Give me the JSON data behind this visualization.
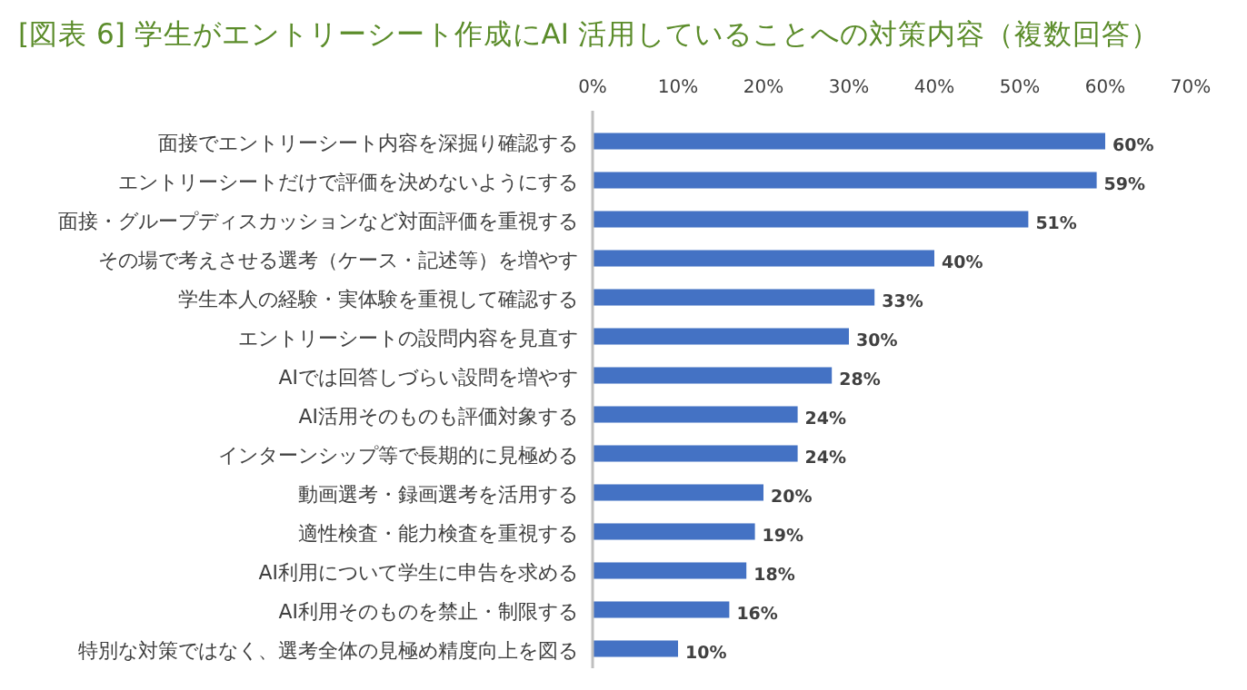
{
  "chart_data": {
    "type": "bar",
    "orientation": "horizontal",
    "title": "[図表 6] 学生がエントリーシート作成にAI 活用していることへの対策内容（複数回答）",
    "categories": [
      "面接でエントリーシート内容を深掘り確認する",
      "エントリーシートだけで評価を決めないようにする",
      "面接・グループディスカッションなど対面評価を重視する",
      "その場で考えさせる選考（ケース・記述等）を増やす",
      "学生本人の経験・実体験を重視して確認する",
      "エントリーシートの設問内容を見直す",
      "AIでは回答しづらい設問を増やす",
      "AI活用そのものも評価対象する",
      "インターンシップ等で長期的に見極める",
      "動画選考・録画選考を活用する",
      "適性検査・能力検査を重視する",
      "AI利用について学生に申告を求める",
      "AI利用そのものを禁止・制限する",
      "特別な対策ではなく、選考全体の見極め精度向上を図る"
    ],
    "values": [
      60,
      59,
      51,
      40,
      33,
      30,
      28,
      24,
      24,
      20,
      19,
      18,
      16,
      10
    ],
    "value_labels": [
      "60%",
      "59%",
      "51%",
      "40%",
      "33%",
      "30%",
      "28%",
      "24%",
      "24%",
      "20%",
      "19%",
      "18%",
      "16%",
      "10%"
    ],
    "color": "#4472c4",
    "xlim": [
      0,
      70
    ],
    "xticks": [
      {
        "value": 0,
        "label": "0%"
      },
      {
        "value": 10,
        "label": "10%"
      },
      {
        "value": 20,
        "label": "20%"
      },
      {
        "value": 30,
        "label": "30%"
      },
      {
        "value": 40,
        "label": "40%"
      },
      {
        "value": 50,
        "label": "50%"
      },
      {
        "value": 60,
        "label": "60%"
      },
      {
        "value": 70,
        "label": "70%"
      }
    ],
    "grid": false
  }
}
